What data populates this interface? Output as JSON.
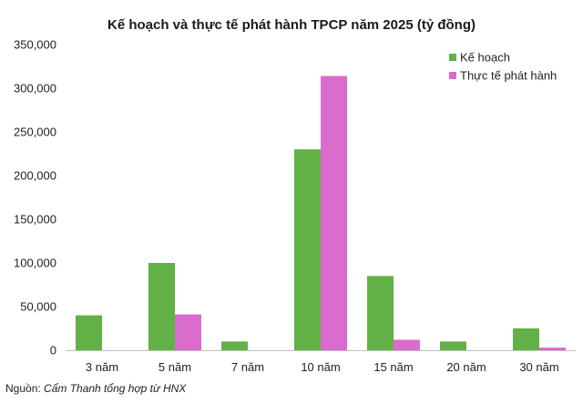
{
  "chart_data": {
    "type": "bar",
    "title": "Kế hoạch và thực tế phát hành TPCP năm 2025 (tỷ đồng)",
    "categories": [
      "3 năm",
      "5 năm",
      "7 năm",
      "10 năm",
      "15 năm",
      "20 năm",
      "30 năm"
    ],
    "series": [
      {
        "name": "Kế hoạch",
        "color": "#62b146",
        "values": [
          40000,
          100000,
          10000,
          230000,
          85000,
          10000,
          25000
        ]
      },
      {
        "name": "Thực tế phát hành",
        "color": "#d96ccd",
        "values": [
          0,
          41000,
          0,
          314000,
          12000,
          0,
          3000
        ]
      }
    ],
    "ylim": [
      0,
      350000
    ],
    "yticks": [
      "0",
      "50,000",
      "100,000",
      "150,000",
      "200,000",
      "250,000",
      "300,000",
      "350,000"
    ],
    "ytick_values": [
      0,
      50000,
      100000,
      150000,
      200000,
      250000,
      300000,
      350000
    ],
    "grid": false,
    "legend_position": "top-right"
  },
  "source": {
    "prefix": "Nguồn: ",
    "text": "Cẩm Thanh tổng hợp từ HNX"
  }
}
